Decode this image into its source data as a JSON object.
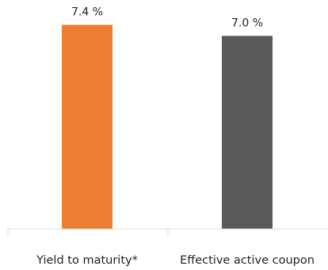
{
  "chart_data": {
    "type": "bar",
    "categories": [
      "Yield to maturity*",
      "Effective active coupon"
    ],
    "values": [
      7.4,
      7.0
    ],
    "value_labels": [
      "7.4 %",
      "7.0 %"
    ],
    "colors": [
      "#ED7D31",
      "#595959"
    ],
    "title": "",
    "xlabel": "",
    "ylabel": "",
    "ylim": [
      0,
      8.3
    ],
    "grid": false,
    "legend": "none"
  }
}
